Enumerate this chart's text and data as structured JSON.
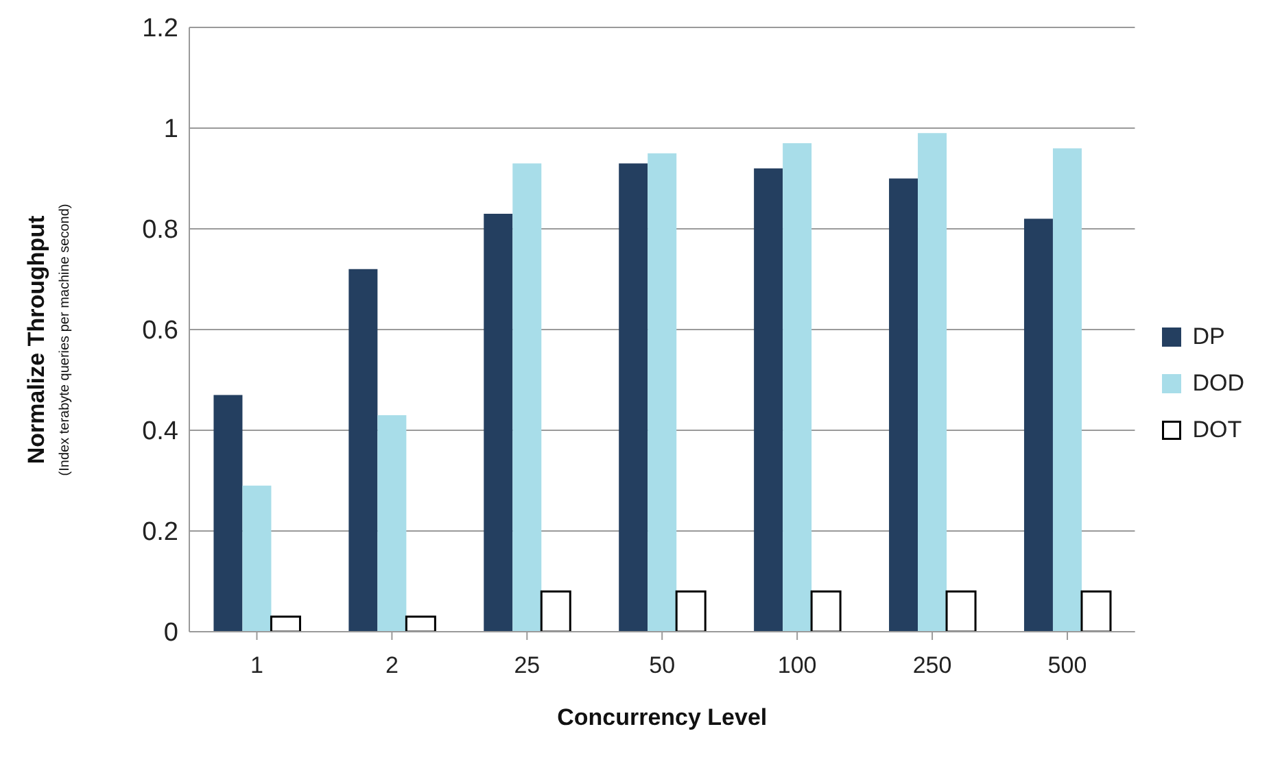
{
  "chart_data": {
    "type": "bar",
    "xlabel": "Concurrency Level",
    "ylabel": "Normalize Throughput\n(Index terabyte queries per machine second)",
    "categories": [
      "1",
      "2",
      "25",
      "50",
      "100",
      "250",
      "500"
    ],
    "series": [
      {
        "name": "DP",
        "color": "#243f60",
        "values": [
          0.47,
          0.72,
          0.83,
          0.93,
          0.92,
          0.9,
          0.82
        ]
      },
      {
        "name": "DOD",
        "color": "#a8dde9",
        "values": [
          0.29,
          0.43,
          0.93,
          0.95,
          0.97,
          0.99,
          0.96
        ]
      },
      {
        "name": "DOT",
        "color": "#ffffff",
        "values": [
          0.03,
          0.03,
          0.08,
          0.08,
          0.08,
          0.08,
          0.08
        ]
      }
    ],
    "ylim": [
      0,
      1.2
    ],
    "yticks": [
      0,
      0.2,
      0.4,
      0.6,
      0.8,
      1,
      1.2
    ],
    "grid": "y",
    "legend": "right"
  }
}
